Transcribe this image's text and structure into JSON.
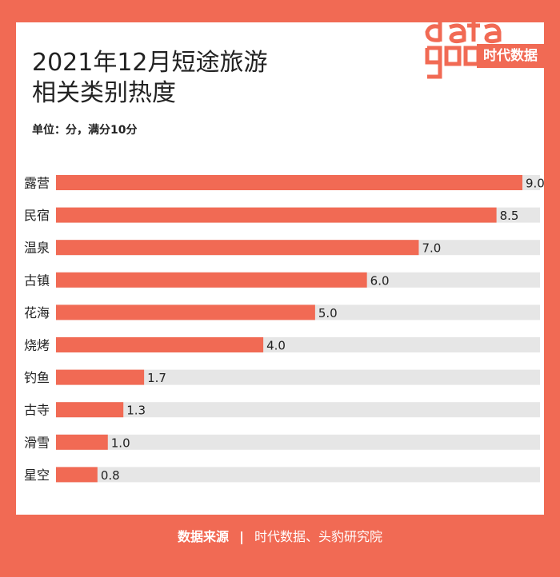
{
  "title_line1": "2021年12月短途旅游",
  "title_line2": "相关类别热度",
  "unit_label": "单位：分，满分10分",
  "logo": {
    "word": "data good",
    "block_text": "时代数据"
  },
  "source": {
    "label": "数据来源",
    "separator": "|",
    "text": "时代数据、头豹研究院"
  },
  "colors": {
    "bar": "#f16a54",
    "track": "#e6e6e6",
    "background": "#f16a54"
  },
  "chart_data": {
    "type": "bar",
    "orientation": "horizontal",
    "title": "2021年12月短途旅游相关类别热度",
    "unit": "单位：分，满分10分",
    "categories": [
      "露营",
      "民宿",
      "温泉",
      "古镇",
      "花海",
      "烧烤",
      "钓鱼",
      "古寺",
      "滑雪",
      "星空"
    ],
    "values": [
      9.0,
      8.5,
      7.0,
      6.0,
      5.0,
      4.0,
      1.7,
      1.3,
      1.0,
      0.8
    ],
    "value_labels": [
      "9.0",
      "8.5",
      "7.0",
      "6.0",
      "5.0",
      "4.0",
      "1.7",
      "1.3",
      "1.0",
      "0.8"
    ],
    "xlim": [
      0,
      9.0
    ],
    "grid": false,
    "legend": "none"
  }
}
